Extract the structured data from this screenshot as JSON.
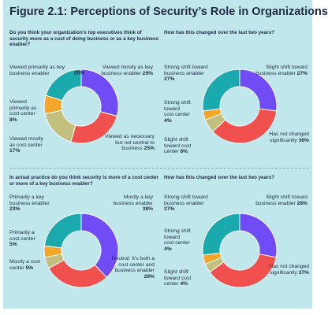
{
  "title": "Figure 2.1: Perceptions of Security’s Role in Organizations",
  "colors": {
    "background": "#bfe7ec",
    "purple": "#6f4cf6",
    "red": "#f0504e",
    "olive": "#c3bf7e",
    "orange": "#f3a629",
    "teal": "#1aa9ad"
  },
  "panels": [
    {
      "question": "Do you think your organization’s top executives think of security more as a cost of doing business or as a key business enabler?",
      "labels": [
        {
          "text": "Viewed primarily as key business enabler",
          "pct": "20%"
        },
        {
          "text": "Viewed mostly as key business enabler",
          "pct": "29%"
        },
        {
          "text": "Viewed as necessary but not central to business",
          "pct": "25%"
        },
        {
          "text": "Viewed mostly as cost center",
          "pct": "17%"
        },
        {
          "text": "Viewed primarily as cost center",
          "pct": "8%"
        }
      ]
    },
    {
      "question": "How has this changed over the last two years?",
      "labels": [
        {
          "text": "Strong shift toward business enabler",
          "pct": "27%"
        },
        {
          "text": "Slight shift toward business enabler",
          "pct": "27%"
        },
        {
          "text": "Has not changed significantly",
          "pct": "36%"
        },
        {
          "text": "Slight shift toward cost center",
          "pct": "6%"
        },
        {
          "text": "Strong shift toward cost center",
          "pct": "4%"
        }
      ]
    },
    {
      "question": "In actual practice do you think security is more of a cost center or more of a key business enabler?",
      "labels": [
        {
          "text": "Primarily a key business enabler",
          "pct": "23%"
        },
        {
          "text": "Mostly a key business enabler",
          "pct": "38%"
        },
        {
          "text": "Neutral: It’s both a cost center and business enabler",
          "pct": "29%"
        },
        {
          "text": "Mostly a cost center",
          "pct": "5%"
        },
        {
          "text": "Primarily a cost center",
          "pct": "5%"
        }
      ]
    },
    {
      "question": "How has this changed over the last two years?",
      "labels": [
        {
          "text": "Strong shift toward business enabler",
          "pct": "27%"
        },
        {
          "text": "Slight shift toward business enabler",
          "pct": "28%"
        },
        {
          "text": "Has not changed significantly",
          "pct": "37%"
        },
        {
          "text": "Slight shift toward cost center",
          "pct": "4%"
        },
        {
          "text": "Strong shift toward cost center",
          "pct": "4%"
        }
      ]
    }
  ],
  "chart_data": [
    {
      "type": "pie",
      "title": "Do you think your organization’s top executives think of security more as a cost of doing business or as a key business enabler?",
      "categories": [
        "Viewed mostly as key business enabler",
        "Viewed as necessary but not central to business",
        "Viewed mostly as cost center",
        "Viewed primarily as cost center",
        "Viewed primarily as key business enabler"
      ],
      "values": [
        29,
        25,
        17,
        8,
        20
      ],
      "colors": [
        "#6f4cf6",
        "#f0504e",
        "#c3bf7e",
        "#f3a629",
        "#1aa9ad"
      ]
    },
    {
      "type": "pie",
      "title": "How has this changed over the last two years?",
      "categories": [
        "Slight shift toward business enabler",
        "Has not changed significantly",
        "Slight shift toward cost center",
        "Strong shift toward cost center",
        "Strong shift toward business enabler"
      ],
      "values": [
        27,
        36,
        6,
        4,
        27
      ],
      "colors": [
        "#6f4cf6",
        "#f0504e",
        "#c3bf7e",
        "#f3a629",
        "#1aa9ad"
      ]
    },
    {
      "type": "pie",
      "title": "In actual practice do you think security is more of a cost center or more of a key business enabler?",
      "categories": [
        "Mostly a key business enabler",
        "Neutral: It’s both a cost center and business enabler",
        "Mostly a cost center",
        "Primarily a cost center",
        "Primarily a key business enabler"
      ],
      "values": [
        38,
        29,
        5,
        5,
        23
      ],
      "colors": [
        "#6f4cf6",
        "#f0504e",
        "#c3bf7e",
        "#f3a629",
        "#1aa9ad"
      ]
    },
    {
      "type": "pie",
      "title": "How has this changed over the last two years?",
      "categories": [
        "Slight shift toward business enabler",
        "Has not changed significantly",
        "Slight shift toward cost center",
        "Strong shift toward cost center",
        "Strong shift toward business enabler"
      ],
      "values": [
        28,
        37,
        4,
        4,
        27
      ],
      "colors": [
        "#6f4cf6",
        "#f0504e",
        "#c3bf7e",
        "#f3a629",
        "#1aa9ad"
      ]
    }
  ]
}
